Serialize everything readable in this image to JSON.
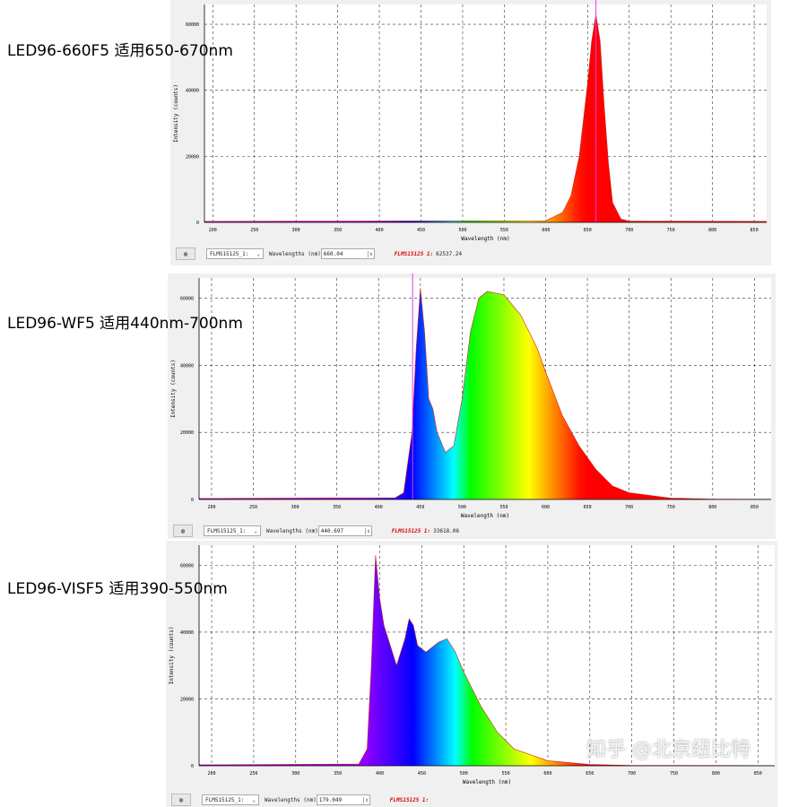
{
  "chart_data": [
    {
      "type": "area",
      "label": "LED96-660F5 适用650-670nm",
      "xlabel": "Wavelength (nm)",
      "ylabel": "Intensity (counts)",
      "xticks": [
        200,
        250,
        300,
        350,
        400,
        450,
        500,
        550,
        600,
        650,
        700,
        750,
        800,
        850
      ],
      "yticks": [
        0,
        20000,
        40000,
        60000
      ],
      "xlim": [
        190,
        865
      ],
      "ylim": [
        0,
        66000
      ],
      "grid": true,
      "cursor": 660.04,
      "x": [
        190,
        600,
        620,
        630,
        640,
        650,
        655,
        660,
        665,
        670,
        675,
        680,
        690,
        700,
        865
      ],
      "y": [
        300,
        500,
        3000,
        8000,
        20000,
        42000,
        55000,
        63000,
        55000,
        35000,
        18000,
        6000,
        1000,
        400,
        300
      ],
      "toolbar": {
        "device": "FLMS15125_1:",
        "wl_label": "Wavelengths (nm)",
        "wl_value": "660.04",
        "readout_label": "FLMS15125 1:",
        "readout_value": "62537.24"
      }
    },
    {
      "type": "area",
      "label": "LED96-WF5 适用440nm-700nm",
      "xlabel": "Wavelength (nm)",
      "ylabel": "Intensity (counts)",
      "xticks": [
        200,
        250,
        300,
        350,
        400,
        450,
        500,
        550,
        600,
        650,
        700,
        750,
        800,
        850
      ],
      "yticks": [
        0,
        20000,
        40000,
        60000
      ],
      "xlim": [
        185,
        870
      ],
      "ylim": [
        0,
        66000
      ],
      "grid": true,
      "cursor": 440.697,
      "x": [
        185,
        420,
        430,
        440,
        445,
        450,
        455,
        460,
        465,
        470,
        480,
        490,
        500,
        510,
        520,
        530,
        550,
        570,
        590,
        600,
        620,
        640,
        660,
        680,
        700,
        750,
        800,
        870
      ],
      "y": [
        300,
        500,
        2000,
        20000,
        45000,
        63000,
        50000,
        30000,
        27000,
        20000,
        14000,
        16000,
        30000,
        50000,
        60000,
        62000,
        61000,
        55000,
        45000,
        38000,
        25000,
        16000,
        9000,
        4000,
        2000,
        400,
        100,
        50
      ],
      "toolbar": {
        "device": "FLMS15125_1:",
        "wl_label": "Wavelengths (nm)",
        "wl_value": "440.697",
        "readout_label": "FLMS15125 1:",
        "readout_value": "33618.06"
      }
    },
    {
      "type": "area",
      "label": "LED96-VISF5 适用390-550nm",
      "xlabel": "Wavelength (nm)",
      "ylabel": "Intensity (counts)",
      "xticks": [
        200,
        250,
        300,
        350,
        400,
        450,
        500,
        550,
        600,
        650,
        700,
        750,
        800,
        850
      ],
      "yticks": [
        0,
        20000,
        40000,
        60000
      ],
      "xlim": [
        185,
        870
      ],
      "ylim": [
        0,
        66000
      ],
      "grid": true,
      "cursor": 179.049,
      "x": [
        185,
        375,
        385,
        390,
        395,
        400,
        405,
        410,
        420,
        430,
        435,
        440,
        445,
        455,
        470,
        480,
        490,
        500,
        520,
        540,
        560,
        600,
        650,
        700,
        870
      ],
      "y": [
        300,
        500,
        5000,
        30000,
        63000,
        50000,
        42000,
        38000,
        30000,
        38000,
        44000,
        42000,
        36000,
        34000,
        37000,
        38000,
        34000,
        28000,
        18000,
        10000,
        5000,
        1500,
        400,
        100,
        50
      ],
      "toolbar": {
        "device": "FLMS15125_1:",
        "wl_label": "Wavelengths (nm)",
        "wl_value": "179.049",
        "readout_label": "FLMS15125 1:",
        "readout_value": ""
      }
    }
  ],
  "watermark": "知乎 @北京纽比特"
}
